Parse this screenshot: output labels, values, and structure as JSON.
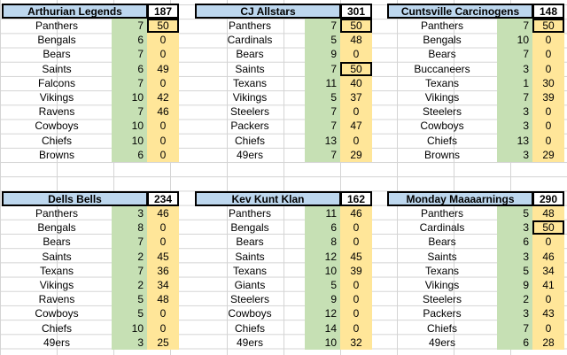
{
  "blocks": [
    {
      "name": "Arthurian Legends",
      "total": "187",
      "rows": [
        {
          "team": "Panthers",
          "pick": "7",
          "pts": "50",
          "boxed": true
        },
        {
          "team": "Bengals",
          "pick": "6",
          "pts": "0"
        },
        {
          "team": "Bears",
          "pick": "7",
          "pts": "0"
        },
        {
          "team": "Saints",
          "pick": "6",
          "pts": "49"
        },
        {
          "team": "Falcons",
          "pick": "7",
          "pts": "0"
        },
        {
          "team": "Vikings",
          "pick": "10",
          "pts": "42"
        },
        {
          "team": "Ravens",
          "pick": "7",
          "pts": "46"
        },
        {
          "team": "Cowboys",
          "pick": "10",
          "pts": "0"
        },
        {
          "team": "Chiefs",
          "pick": "10",
          "pts": "0"
        },
        {
          "team": "Browns",
          "pick": "6",
          "pts": "0"
        }
      ]
    },
    {
      "name": "CJ Allstars",
      "total": "301",
      "rows": [
        {
          "team": "Panthers",
          "pick": "7",
          "pts": "50",
          "boxed": true
        },
        {
          "team": "Cardinals",
          "pick": "5",
          "pts": "48"
        },
        {
          "team": "Bears",
          "pick": "9",
          "pts": "0"
        },
        {
          "team": "Saints",
          "pick": "7",
          "pts": "50",
          "boxed": true
        },
        {
          "team": "Texans",
          "pick": "11",
          "pts": "40"
        },
        {
          "team": "Vikings",
          "pick": "5",
          "pts": "37"
        },
        {
          "team": "Steelers",
          "pick": "7",
          "pts": "0"
        },
        {
          "team": "Packers",
          "pick": "7",
          "pts": "47"
        },
        {
          "team": "Chiefs",
          "pick": "13",
          "pts": "0"
        },
        {
          "team": "49ers",
          "pick": "7",
          "pts": "29"
        }
      ]
    },
    {
      "name": "Cuntsville Carcinogens",
      "total": "148",
      "rows": [
        {
          "team": "Panthers",
          "pick": "7",
          "pts": "50",
          "boxed": true
        },
        {
          "team": "Bengals",
          "pick": "10",
          "pts": "0"
        },
        {
          "team": "Bears",
          "pick": "7",
          "pts": "0"
        },
        {
          "team": "Buccaneers",
          "pick": "3",
          "pts": "0"
        },
        {
          "team": "Texans",
          "pick": "1",
          "pts": "30"
        },
        {
          "team": "Vikings",
          "pick": "7",
          "pts": "39"
        },
        {
          "team": "Steelers",
          "pick": "3",
          "pts": "0"
        },
        {
          "team": "Cowboys",
          "pick": "3",
          "pts": "0"
        },
        {
          "team": "Chiefs",
          "pick": "13",
          "pts": "0"
        },
        {
          "team": "Browns",
          "pick": "3",
          "pts": "29"
        }
      ]
    },
    {
      "name": "Dells Bells",
      "total": "234",
      "rows": [
        {
          "team": "Panthers",
          "pick": "3",
          "pts": "46"
        },
        {
          "team": "Bengals",
          "pick": "8",
          "pts": "0"
        },
        {
          "team": "Bears",
          "pick": "7",
          "pts": "0"
        },
        {
          "team": "Saints",
          "pick": "2",
          "pts": "45"
        },
        {
          "team": "Texans",
          "pick": "7",
          "pts": "36"
        },
        {
          "team": "Vikings",
          "pick": "2",
          "pts": "34"
        },
        {
          "team": "Ravens",
          "pick": "5",
          "pts": "48"
        },
        {
          "team": "Cowboys",
          "pick": "5",
          "pts": "0"
        },
        {
          "team": "Chiefs",
          "pick": "10",
          "pts": "0"
        },
        {
          "team": "49ers",
          "pick": "3",
          "pts": "25"
        }
      ]
    },
    {
      "name": "Kev Kunt Klan",
      "total": "162",
      "rows": [
        {
          "team": "Panthers",
          "pick": "11",
          "pts": "46"
        },
        {
          "team": "Bengals",
          "pick": "6",
          "pts": "0"
        },
        {
          "team": "Bears",
          "pick": "8",
          "pts": "0"
        },
        {
          "team": "Saints",
          "pick": "12",
          "pts": "45"
        },
        {
          "team": "Texans",
          "pick": "10",
          "pts": "39"
        },
        {
          "team": "Giants",
          "pick": "5",
          "pts": "0"
        },
        {
          "team": "Steelers",
          "pick": "9",
          "pts": "0"
        },
        {
          "team": "Cowboys",
          "pick": "12",
          "pts": "0"
        },
        {
          "team": "Chiefs",
          "pick": "14",
          "pts": "0"
        },
        {
          "team": "49ers",
          "pick": "10",
          "pts": "32"
        }
      ]
    },
    {
      "name": "Monday Maaaarnings",
      "total": "290",
      "rows": [
        {
          "team": "Panthers",
          "pick": "5",
          "pts": "48"
        },
        {
          "team": "Cardinals",
          "pick": "3",
          "pts": "50",
          "boxed": true
        },
        {
          "team": "Bears",
          "pick": "6",
          "pts": "0"
        },
        {
          "team": "Saints",
          "pick": "3",
          "pts": "46"
        },
        {
          "team": "Texans",
          "pick": "5",
          "pts": "34"
        },
        {
          "team": "Vikings",
          "pick": "9",
          "pts": "41"
        },
        {
          "team": "Steelers",
          "pick": "2",
          "pts": "0"
        },
        {
          "team": "Packers",
          "pick": "3",
          "pts": "43"
        },
        {
          "team": "Chiefs",
          "pick": "7",
          "pts": "0"
        },
        {
          "team": "49ers",
          "pick": "6",
          "pts": "28"
        }
      ]
    }
  ],
  "colors": {
    "header": "#bdd7ee",
    "pick": "#c6e0b4",
    "points": "#ffe699",
    "gridline": "#d4d4d4"
  }
}
